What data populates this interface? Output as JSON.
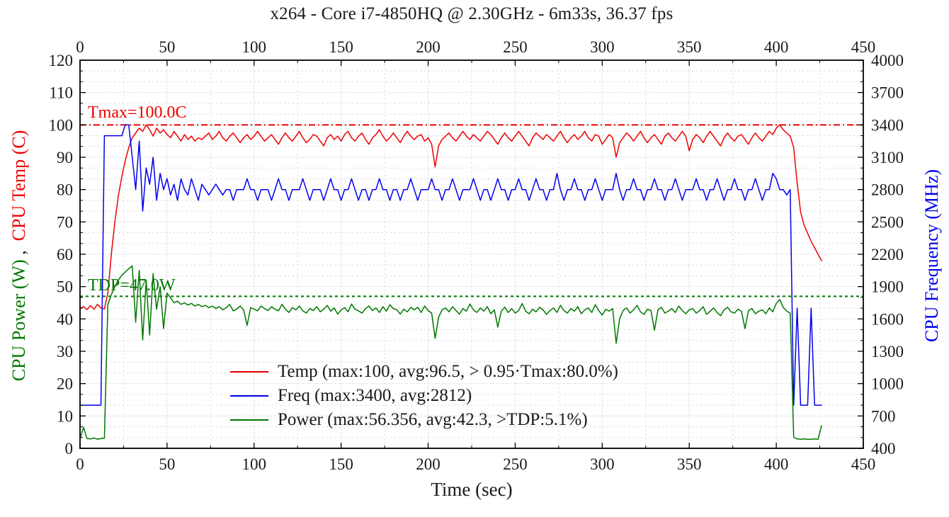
{
  "title": "x264 - Core i7-4850HQ @ 2.30GHz - 6m33s, 36.37 fps",
  "colors": {
    "temp": "#ee0000",
    "freq": "#0000ee",
    "power": "#007700",
    "grid_major": "#c6c6c6",
    "grid_minor": "#d6d6d6",
    "axis": "#000000",
    "text": "#1a1a1a"
  },
  "axes": {
    "x": {
      "label": "Time (sec)",
      "min": 0,
      "max": 450,
      "major_ticks": [
        0,
        50,
        100,
        150,
        200,
        250,
        300,
        350,
        400,
        450
      ],
      "minor_ticks": [
        25,
        75,
        125,
        175,
        225,
        275,
        325,
        375,
        425
      ]
    },
    "y_left": {
      "label_power": "CPU Power (W)",
      "label_comma": " ,  ",
      "label_temp": "CPU Temp (C)",
      "min": 0,
      "max": 120,
      "major_ticks": [
        0,
        10,
        20,
        30,
        40,
        50,
        60,
        70,
        80,
        90,
        100,
        110,
        120
      ],
      "minors_per_interval": 3
    },
    "y_right": {
      "label": "CPU Frequency (MHz)",
      "min": 400,
      "max": 4000,
      "major_ticks": [
        400,
        700,
        1000,
        1300,
        1600,
        1900,
        2200,
        2500,
        2800,
        3100,
        3400,
        3700,
        4000
      ]
    }
  },
  "annotations": {
    "tmax": {
      "text": "Tmax=100.0C",
      "value": 100,
      "axis": "left",
      "color": "#ee0000",
      "dash": "9,4,2,4"
    },
    "tdp": {
      "text": "TDP=47.0W",
      "value": 47,
      "axis": "left",
      "color": "#007700",
      "dash": "4,4"
    }
  },
  "legend": [
    {
      "series": "temp",
      "label": "Temp (max:100, avg:96.5, > 0.95·Tmax:80.0%)",
      "color": "#ee0000"
    },
    {
      "series": "freq",
      "label": "Freq (max:3400, avg:2812)",
      "color": "#0000ee"
    },
    {
      "series": "power",
      "label": "Power (max:56.356, avg:42.3, >TDP:5.1%)",
      "color": "#007700"
    }
  ],
  "chart_data": {
    "type": "line",
    "x_start": 0,
    "x_step": 2,
    "xlabel": "Time (sec)",
    "x_range": [
      0,
      450
    ],
    "y_left_range": [
      0,
      120
    ],
    "y_right_range": [
      400,
      4000
    ],
    "grid": true,
    "legend_position": "center-bottom-inside",
    "series": [
      {
        "name": "Temp",
        "axis": "left",
        "color": "#ee0000",
        "max": 100,
        "avg": 96.5,
        "values": [
          43.2,
          43.8,
          42.9,
          44.1,
          43.0,
          44.5,
          43.4,
          43.1,
          48,
          60,
          70,
          78,
          84,
          89,
          93,
          96,
          97.5,
          99,
          98,
          100,
          98.5,
          96.5,
          99,
          97.5,
          98.5,
          97,
          96,
          98,
          96.5,
          95,
          97,
          95.5,
          96.5,
          95,
          96,
          95.5,
          96.5,
          97.5,
          95.5,
          96.5,
          98,
          96,
          95,
          96.5,
          97.5,
          96,
          94.5,
          96,
          97,
          95.5,
          96.5,
          98,
          96.5,
          95,
          96,
          97,
          95.5,
          94,
          96,
          97.5,
          96,
          95,
          96.5,
          98,
          96,
          94.5,
          95.5,
          97,
          96.5,
          95,
          93.5,
          96,
          97,
          95.5,
          96.5,
          95,
          97,
          98,
          96,
          95,
          96.5,
          97.5,
          95.5,
          94,
          96,
          97,
          98.5,
          96.5,
          95,
          96,
          97.5,
          96,
          94.5,
          96.5,
          98,
          96.5,
          95.5,
          96.5,
          97,
          95,
          96,
          94,
          87,
          93.5,
          95.5,
          96.5,
          97.5,
          96,
          95,
          96.5,
          98,
          96.5,
          95.5,
          97,
          96,
          95,
          96.5,
          98,
          97,
          95.5,
          94,
          96,
          97.5,
          96,
          95,
          96.5,
          98,
          96.5,
          95,
          93.5,
          96,
          97.5,
          96.5,
          95.5,
          97,
          96,
          95,
          96.5,
          98,
          96,
          94.5,
          96,
          97,
          95.5,
          96.5,
          98,
          96,
          95,
          97,
          96.5,
          94,
          95.5,
          97,
          96,
          90,
          94.5,
          96,
          97.5,
          96.5,
          95,
          96.5,
          98,
          96,
          94.5,
          96,
          97,
          95.5,
          94,
          96.5,
          97.5,
          96,
          95,
          96.5,
          98,
          96.5,
          92,
          95.5,
          97,
          96,
          94.5,
          96.5,
          98,
          96.5,
          95,
          93.5,
          96,
          97.5,
          96,
          95,
          96.5,
          97,
          95.5,
          94,
          96,
          97.5,
          96,
          95,
          96.5,
          98,
          97,
          99,
          100,
          98.5,
          97.5,
          96.5,
          93,
          82,
          73,
          69,
          66.5,
          64,
          62,
          60,
          58
        ]
      },
      {
        "name": "Freq",
        "axis": "right",
        "color": "#0000ee",
        "max": 3400,
        "avg": 2812,
        "values": [
          800,
          800,
          800,
          800,
          800,
          800,
          800,
          3300,
          3300,
          3300,
          3300,
          3300,
          3300,
          3400,
          3400,
          3100,
          2800,
          3250,
          2600,
          3000,
          2850,
          3100,
          2700,
          2950,
          2800,
          2900,
          2750,
          2850,
          2700,
          2900,
          2800,
          2750,
          2900,
          2800,
          2700,
          2850,
          2800,
          2750,
          2800,
          2850,
          2800,
          2750,
          2800,
          2800,
          2700,
          2800,
          2800,
          2800,
          2900,
          2800,
          2800,
          2700,
          2800,
          2800,
          2800,
          2700,
          2800,
          2900,
          2800,
          2800,
          2700,
          2800,
          2800,
          2800,
          2900,
          2800,
          2700,
          2800,
          2800,
          2800,
          2700,
          2800,
          2900,
          2800,
          2800,
          2700,
          2800,
          2800,
          2900,
          2800,
          2700,
          2800,
          2800,
          2700,
          2800,
          2800,
          2900,
          2800,
          2800,
          2700,
          2800,
          2800,
          2700,
          2800,
          2800,
          2900,
          2800,
          2700,
          2800,
          2800,
          2800,
          2900,
          2800,
          2800,
          2700,
          2800,
          2800,
          2900,
          2800,
          2700,
          2800,
          2800,
          2800,
          2900,
          2800,
          2700,
          2800,
          2800,
          2700,
          2800,
          2900,
          2800,
          2800,
          2700,
          2800,
          2800,
          2900,
          2800,
          2800,
          2700,
          2800,
          2900,
          2800,
          2800,
          2700,
          2800,
          2800,
          2950,
          2800,
          2700,
          2800,
          2800,
          2900,
          2800,
          2800,
          2700,
          2800,
          2800,
          2900,
          2800,
          2700,
          2800,
          2800,
          2800,
          2950,
          2800,
          2700,
          2800,
          2800,
          2900,
          2800,
          2800,
          2700,
          2800,
          2800,
          2900,
          2800,
          2800,
          2700,
          2800,
          2800,
          2900,
          2800,
          2700,
          2800,
          2800,
          2800,
          2900,
          2800,
          2800,
          2700,
          2800,
          2800,
          2900,
          2800,
          2700,
          2800,
          2800,
          2900,
          2800,
          2800,
          2700,
          2800,
          2800,
          2900,
          2800,
          2700,
          2800,
          2800,
          2950,
          2900,
          2800,
          2800,
          2750,
          2800,
          800,
          1700,
          800,
          800,
          800,
          1700,
          800,
          800,
          800
        ]
      },
      {
        "name": "Power",
        "axis": "left",
        "color": "#007700",
        "max": 56.356,
        "avg": 42.3,
        "values": [
          3.0,
          6.5,
          3.0,
          2.9,
          3.2,
          2.8,
          3.0,
          3.1,
          44.5,
          47.5,
          50.0,
          52.0,
          53.5,
          54.5,
          55.5,
          56.4,
          39,
          55,
          33.5,
          52,
          35,
          54,
          43,
          50,
          37,
          48,
          46.5,
          45,
          45.5,
          44.5,
          45,
          44.3,
          44.8,
          44,
          44.5,
          43.8,
          44.2,
          43.5,
          44,
          43.2,
          43.8,
          42.8,
          43.5,
          44.5,
          42.5,
          43,
          44,
          42.8,
          38,
          43.5,
          43,
          42.5,
          44,
          43.2,
          42.6,
          43.8,
          43,
          42.5,
          44.5,
          43,
          42,
          43.5,
          42.8,
          44,
          42.5,
          41.8,
          43.2,
          42.6,
          43.8,
          42.2,
          43,
          44.2,
          42.4,
          43.4,
          41.5,
          42.8,
          43.5,
          42.2,
          44.6,
          43,
          42.5,
          41.8,
          43.2,
          44,
          42.6,
          43.4,
          42,
          43.8,
          42.4,
          44.4,
          43.2,
          42.8,
          41.5,
          43,
          42.2,
          43.6,
          42.8,
          43.6,
          42,
          44,
          42.6,
          41.8,
          34,
          40.5,
          42.8,
          43.4,
          42.2,
          43.8,
          42.6,
          41.5,
          43.2,
          42.4,
          44.6,
          42.8,
          42,
          43.4,
          42.4,
          43.8,
          41.6,
          42.8,
          37.5,
          42.4,
          43.6,
          42,
          43.2,
          41.8,
          42.6,
          44.8,
          42.4,
          41.6,
          43,
          42.2,
          43.6,
          42.8,
          41.4,
          42.6,
          43.4,
          42,
          44.2,
          42.6,
          41.8,
          43.2,
          42.4,
          43.8,
          41.6,
          42.8,
          43.4,
          42,
          44.4,
          42.6,
          41.2,
          43,
          42.4,
          43.2,
          32.5,
          40,
          42.6,
          43.4,
          41.8,
          42.8,
          44.2,
          42.2,
          41.4,
          43,
          42.6,
          36.5,
          42.8,
          43.6,
          41.8,
          42.4,
          43.2,
          42,
          44,
          42.6,
          41.6,
          42.8,
          43.2,
          41.8,
          42.6,
          43.8,
          41.4,
          42.4,
          43.4,
          42,
          41,
          42.8,
          43.6,
          42.2,
          41.8,
          43,
          42.4,
          37,
          42.6,
          43.2,
          41.6,
          42.4,
          42.8,
          41.6,
          43.4,
          42.2,
          44.8,
          46,
          43.6,
          42.4,
          41.8,
          3.4,
          2.9,
          2.8,
          2.9,
          2.8,
          2.8,
          2.9,
          2.8,
          7.0
        ]
      }
    ]
  }
}
